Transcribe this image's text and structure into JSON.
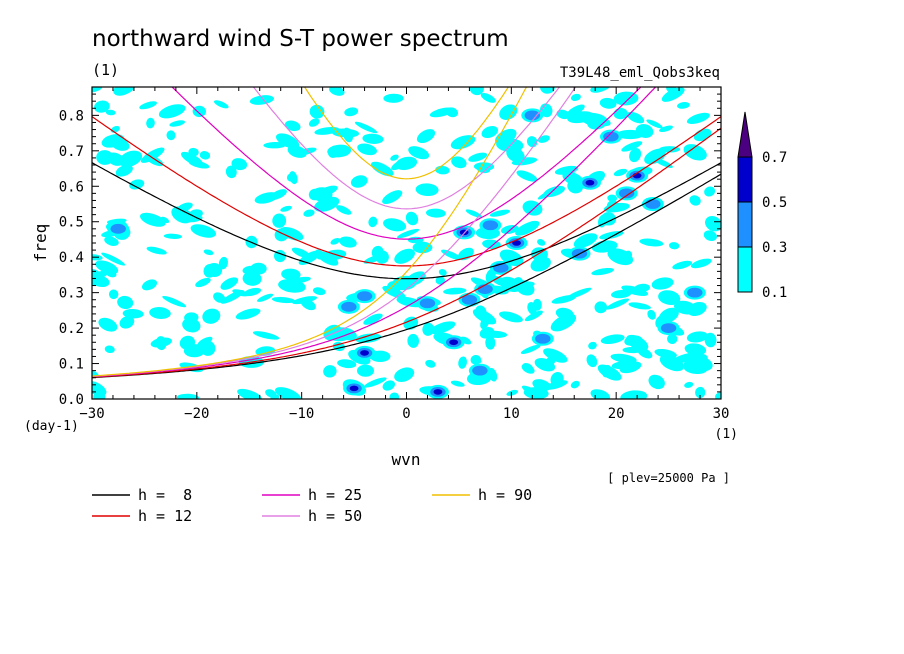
{
  "header": {
    "title": "northward wind S-T power spectrum",
    "subtitle_unit": "(1)",
    "experiment": "T39L48_eml_Qobs3keq",
    "plev_note": "[ plev=25000 Pa ]"
  },
  "chart_data": {
    "type": "heatmap",
    "title": "northward wind S-T power spectrum",
    "xlabel": "wvn",
    "xunit": "(1)",
    "ylabel": "freq",
    "yunit": "(day-1)",
    "xlim": [
      -30,
      30
    ],
    "ylim": [
      0,
      0.88
    ],
    "xticks": [
      -30,
      -20,
      -10,
      0,
      10,
      20,
      30
    ],
    "yticks": [
      0.0,
      0.1,
      0.2,
      0.3,
      0.4,
      0.5,
      0.6,
      0.7,
      0.8
    ],
    "xtick_labels": [
      "-30",
      "-20",
      "-10",
      "0",
      "10",
      "20",
      "30"
    ],
    "ytick_labels": [
      "0.0",
      "0.1",
      "0.2",
      "0.3",
      "0.4",
      "0.5",
      "0.6",
      "0.7",
      "0.8"
    ],
    "colorbar": {
      "levels": [
        "0.1",
        "0.3",
        "0.5",
        "0.7"
      ],
      "colors": [
        "#00ffff",
        "#1e90ff",
        "#0000cd",
        "#4b0082"
      ],
      "extend": "max"
    },
    "blobs": [
      {
        "x": -5,
        "y": 0.03,
        "level": 2
      },
      {
        "x": 3,
        "y": 0.02,
        "level": 2
      },
      {
        "x": 4.5,
        "y": 0.16,
        "level": 2
      },
      {
        "x": -4,
        "y": 0.13,
        "level": 2
      },
      {
        "x": -5.5,
        "y": 0.26,
        "level": 1
      },
      {
        "x": -4,
        "y": 0.29,
        "level": 1
      },
      {
        "x": 6,
        "y": 0.28,
        "level": 1
      },
      {
        "x": 7.5,
        "y": 0.31,
        "level": 1
      },
      {
        "x": 9,
        "y": 0.37,
        "level": 1
      },
      {
        "x": 10.5,
        "y": 0.44,
        "level": 2
      },
      {
        "x": 5.5,
        "y": 0.47,
        "level": 2
      },
      {
        "x": 8,
        "y": 0.49,
        "level": 1
      },
      {
        "x": 16.5,
        "y": 0.41,
        "level": 1
      },
      {
        "x": 17.5,
        "y": 0.61,
        "level": 2
      },
      {
        "x": 22,
        "y": 0.63,
        "level": 2
      },
      {
        "x": 23.5,
        "y": 0.55,
        "level": 1
      },
      {
        "x": 21,
        "y": 0.58,
        "level": 1
      },
      {
        "x": 19.5,
        "y": 0.74,
        "level": 1
      },
      {
        "x": -27.5,
        "y": 0.48,
        "level": 1
      },
      {
        "x": 2,
        "y": 0.27,
        "level": 1
      },
      {
        "x": 7,
        "y": 0.08,
        "level": 1
      },
      {
        "x": 13,
        "y": 0.17,
        "level": 1
      },
      {
        "x": 25,
        "y": 0.2,
        "level": 1
      },
      {
        "x": 12,
        "y": 0.8,
        "level": 1
      },
      {
        "x": 27.5,
        "y": 0.3,
        "level": 1
      }
    ],
    "noise_seed": 7,
    "dispersion_curves": [
      {
        "name": "h =  8",
        "h": 8,
        "color": "#000000"
      },
      {
        "name": "h = 12",
        "h": 12,
        "color": "#e00000"
      },
      {
        "name": "h = 25",
        "h": 25,
        "color": "#e000c0"
      },
      {
        "name": "h = 50",
        "h": 50,
        "color": "#e080e0"
      },
      {
        "name": "h = 90",
        "h": 90,
        "color": "#f0c000"
      }
    ],
    "grid": false,
    "legend_position": "bottom-left"
  }
}
